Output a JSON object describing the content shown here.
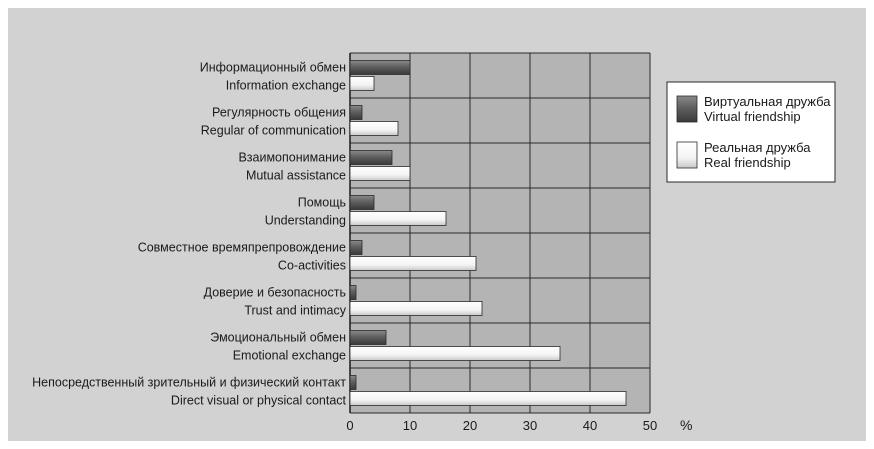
{
  "chart_data": {
    "type": "bar",
    "orientation": "horizontal",
    "categories": [
      [
        "Информационный обмен",
        "Information exchange"
      ],
      [
        "Регулярность общения",
        "Regular of communication"
      ],
      [
        "Взаимопонимание",
        "Mutual assistance"
      ],
      [
        "Помощь",
        "Understanding"
      ],
      [
        "Совместное времяпрепровождение",
        "Co-activities"
      ],
      [
        "Доверие и безопасность",
        "Trust and intimacy"
      ],
      [
        "Эмоциональный обмен",
        "Emotional exchange"
      ],
      [
        "Непосредственный зрительный и физический контакт",
        "Direct visual or physical contact"
      ]
    ],
    "series": [
      {
        "name": [
          "Виртуальная дружба",
          "Virtual friendship"
        ],
        "color": "#6a6a6a",
        "values": [
          10,
          2,
          7,
          4,
          2,
          1,
          6,
          1
        ]
      },
      {
        "name": [
          "Реальная дружба",
          "Real friendship"
        ],
        "color": "#f6f6f6",
        "values": [
          4,
          8,
          10,
          16,
          21,
          22,
          35,
          46
        ]
      }
    ],
    "xticks": [
      "0",
      "10",
      "20",
      "30",
      "40",
      "50"
    ],
    "xlim": [
      0,
      50
    ],
    "xlabel": "%",
    "grid": true,
    "plot_background": "#b4b4b4",
    "legend": "right"
  }
}
